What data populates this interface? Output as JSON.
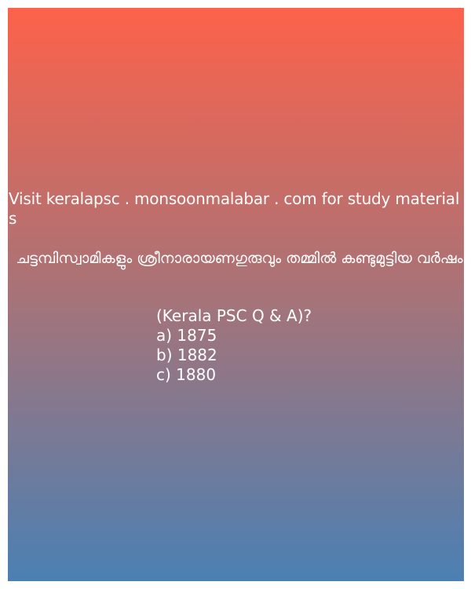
{
  "visit_text": "Visit keralapsc . monsoonmalabar . com for study materials",
  "question_text": "ചട്ടമ്പിസ്വാമികളും ശ്രീനാരായണഗുരുവും തമ്മിൽ കണ്ടുമുട്ടിയ വർഷം",
  "source_tag": "(Kerala PSC Q & A)?",
  "options": [
    "a) 1875",
    "b) 1882",
    "c) 1880"
  ],
  "colors": {
    "gradient_top": "#fd624a",
    "gradient_mid": "#a77378",
    "gradient_bottom": "#4b80b3",
    "text": "#ffffff"
  }
}
